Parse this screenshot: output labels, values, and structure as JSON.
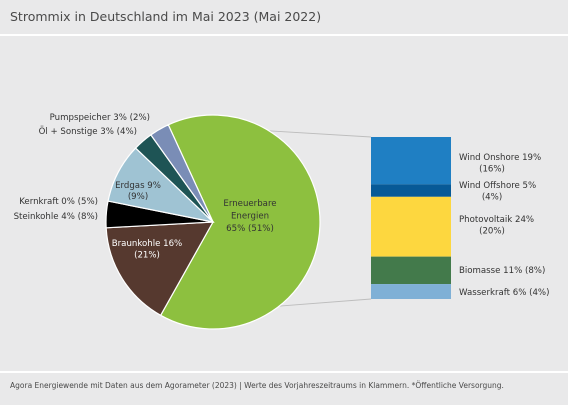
{
  "header": {
    "title": "Strommix in Deutschland im Mai 2023 (Mai 2022)"
  },
  "footer": {
    "source": "Agora Energiewende mit Daten aus dem Agorameter (2023) | Werte des Vorjahreszeitraums in Klammern. *Öffentliche Versorgung."
  },
  "chart_data": [
    {
      "type": "pie",
      "title": "Strommix in Deutschland im Mai 2023 (Mai 2022)",
      "slices": [
        {
          "name": "Erneuerbare Energien",
          "value": 65,
          "prev": 51,
          "color": "#8dc03f",
          "lines": [
            "Erneuerbare",
            "Energien",
            "65% (51%)"
          ]
        },
        {
          "name": "Braunkohle",
          "value": 16,
          "prev": 21,
          "color": "#56392f",
          "lines": [
            "Braunkohle 16%",
            "(21%)"
          ]
        },
        {
          "name": "Steinkohle",
          "value": 4,
          "prev": 8,
          "color": "#000000",
          "lines": [
            "Steinkohle 4% (8%)"
          ]
        },
        {
          "name": "Kernkraft",
          "value": 0,
          "prev": 5,
          "color": "#9f1d20",
          "lines": [
            "Kernkraft 0% (5%)"
          ]
        },
        {
          "name": "Erdgas",
          "value": 9,
          "prev": 9,
          "color": "#9fc3d3",
          "lines": [
            "Erdgas 9%",
            "(9%)"
          ]
        },
        {
          "name": "Öl + Sonstige",
          "value": 3,
          "prev": 4,
          "color": "#1e5455",
          "lines": [
            "Öl + Sonstige 3% (4%)"
          ]
        },
        {
          "name": "Pumpspeicher",
          "value": 3,
          "prev": 2,
          "color": "#7a8db6",
          "lines": [
            "Pumpspeicher 3% (2%)"
          ]
        }
      ]
    },
    {
      "type": "bar",
      "title": "",
      "stacked": true,
      "segments": [
        {
          "name": "Wind Onshore",
          "value": 19,
          "prev": 16,
          "color": "#1f7fc3",
          "lines": [
            "Wind Onshore 19%",
            "(16%)"
          ]
        },
        {
          "name": "Wind Offshore",
          "value": 5,
          "prev": 4,
          "color": "#075a97",
          "lines": [
            "Wind Offshore 5%",
            "(4%)"
          ]
        },
        {
          "name": "Photovoltaik",
          "value": 24,
          "prev": 20,
          "color": "#fdd73f",
          "lines": [
            "Photovoltaik 24%",
            "(20%)"
          ]
        },
        {
          "name": "Biomasse",
          "value": 11,
          "prev": 8,
          "color": "#437a4b",
          "lines": [
            "Biomasse 11% (8%)"
          ]
        },
        {
          "name": "Wasserkraft",
          "value": 6,
          "prev": 4,
          "color": "#7fb0d6",
          "lines": [
            "Wasserkraft 6% (4%)"
          ]
        }
      ]
    }
  ]
}
